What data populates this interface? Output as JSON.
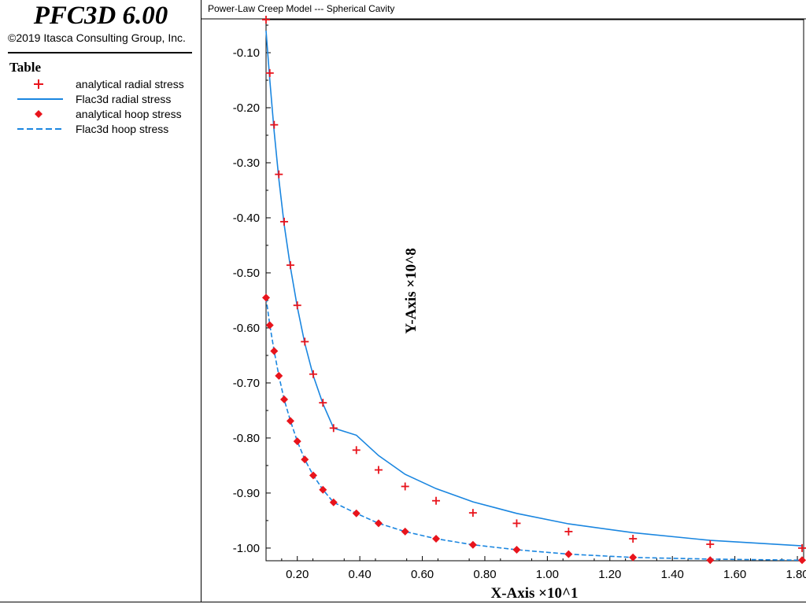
{
  "app": {
    "logo_title": "PFC3D 6.00",
    "copyright": "©2019 Itasca Consulting Group, Inc."
  },
  "legend": {
    "heading": "Table",
    "items": [
      {
        "label": "analytical radial stress",
        "marker": "plus",
        "color": "#e8141c"
      },
      {
        "label": "Flac3d radial stress",
        "marker": "solid-line",
        "color": "#1a86e0"
      },
      {
        "label": "analytical hoop stress",
        "marker": "diamond",
        "color": "#e8141c"
      },
      {
        "label": "Flac3d hoop stress",
        "marker": "dashed-line",
        "color": "#1a86e0"
      }
    ]
  },
  "plot": {
    "title": "Power-Law Creep Model --- Spherical Cavity"
  },
  "chart_data": {
    "type": "line",
    "title": "Power-Law Creep Model --- Spherical Cavity",
    "xlabel": "X-Axis ×10^1",
    "ylabel": "Y-Axis ×10^8",
    "xlim": [
      0.1,
      1.82
    ],
    "ylim": [
      -1.023,
      -0.04
    ],
    "xticks": [
      0.2,
      0.4,
      0.6,
      0.8,
      1.0,
      1.2,
      1.4,
      1.6,
      1.8
    ],
    "xtick_labels": [
      "0.20",
      "0.40",
      "0.60",
      "0.80",
      "1.00",
      "1.20",
      "1.40",
      "1.60",
      "1.80"
    ],
    "yticks": [
      -0.1,
      -0.2,
      -0.3,
      -0.4,
      -0.5,
      -0.6,
      -0.7,
      -0.8,
      -0.9,
      -1.0
    ],
    "ytick_labels": [
      "-0.10",
      "-0.20",
      "-0.30",
      "-0.40",
      "-0.50",
      "-0.60",
      "-0.70",
      "-0.80",
      "-0.90",
      "-1.00"
    ],
    "grid": false,
    "legend_position": "left-panel",
    "series": [
      {
        "name": "analytical radial stress",
        "style": "markers-plus",
        "color": "#e8141c",
        "x": [
          0.1,
          0.112,
          0.126,
          0.141,
          0.158,
          0.178,
          0.2,
          0.224,
          0.251,
          0.282,
          0.316,
          0.389,
          0.46,
          0.545,
          0.644,
          0.762,
          0.902,
          1.068,
          1.274,
          1.521,
          1.815
        ],
        "y": [
          -0.04,
          -0.137,
          -0.231,
          -0.321,
          -0.407,
          -0.486,
          -0.559,
          -0.625,
          -0.684,
          -0.736,
          -0.782,
          -0.822,
          -0.858,
          -0.888,
          -0.914,
          -0.936,
          -0.955,
          -0.97,
          -0.983,
          -0.993,
          -1.0
        ]
      },
      {
        "name": "Flac3d radial stress",
        "style": "solid-line",
        "color": "#1a86e0",
        "x": [
          0.1,
          0.112,
          0.126,
          0.141,
          0.158,
          0.178,
          0.2,
          0.224,
          0.251,
          0.282,
          0.316,
          0.389,
          0.46,
          0.545,
          0.644,
          0.762,
          0.902,
          1.068,
          1.274,
          1.521,
          1.815
        ],
        "y": [
          -0.06,
          -0.15,
          -0.243,
          -0.33,
          -0.412,
          -0.49,
          -0.562,
          -0.628,
          -0.687,
          -0.738,
          -0.782,
          -0.795,
          -0.832,
          -0.866,
          -0.892,
          -0.916,
          -0.937,
          -0.956,
          -0.972,
          -0.986,
          -0.996
        ]
      },
      {
        "name": "analytical hoop stress",
        "style": "markers-diamond",
        "color": "#e8141c",
        "x": [
          0.1,
          0.112,
          0.126,
          0.141,
          0.158,
          0.178,
          0.2,
          0.224,
          0.251,
          0.282,
          0.316,
          0.389,
          0.46,
          0.545,
          0.644,
          0.762,
          0.902,
          1.068,
          1.274,
          1.521,
          1.815
        ],
        "y": [
          -0.545,
          -0.595,
          -0.642,
          -0.687,
          -0.73,
          -0.769,
          -0.806,
          -0.839,
          -0.868,
          -0.894,
          -0.917,
          -0.937,
          -0.955,
          -0.97,
          -0.983,
          -0.994,
          -1.003,
          -1.011,
          -1.017,
          -1.022,
          -1.022
        ]
      },
      {
        "name": "Flac3d hoop stress",
        "style": "dashed-line",
        "color": "#1a86e0",
        "x": [
          0.1,
          0.112,
          0.126,
          0.141,
          0.158,
          0.178,
          0.2,
          0.224,
          0.251,
          0.282,
          0.316,
          0.389,
          0.46,
          0.545,
          0.644,
          0.762,
          0.902,
          1.068,
          1.274,
          1.521,
          1.815
        ],
        "y": [
          -0.545,
          -0.595,
          -0.642,
          -0.687,
          -0.73,
          -0.769,
          -0.806,
          -0.839,
          -0.868,
          -0.894,
          -0.917,
          -0.937,
          -0.955,
          -0.97,
          -0.983,
          -0.994,
          -1.003,
          -1.011,
          -1.017,
          -1.02,
          -1.022
        ]
      }
    ]
  }
}
